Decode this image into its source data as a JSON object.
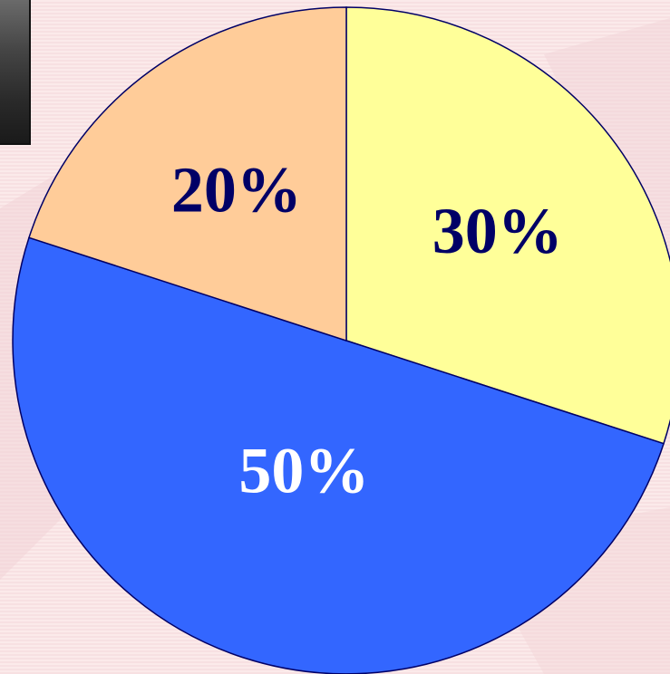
{
  "chart_data": {
    "type": "pie",
    "title": "",
    "slices": [
      {
        "label": "30%",
        "value": 30,
        "color": "#ffff99",
        "label_color": "#000066"
      },
      {
        "label": "50%",
        "value": 50,
        "color": "#3366ff",
        "label_color": "#ffffff"
      },
      {
        "label": "20%",
        "value": 20,
        "color": "#ffcc99",
        "label_color": "#000066"
      }
    ],
    "start_angle_deg": 0,
    "direction": "clockwise",
    "outline_color": "#000066"
  },
  "colors": {
    "background": "#fbeaea",
    "background_streaks": "#f4d6d8"
  }
}
